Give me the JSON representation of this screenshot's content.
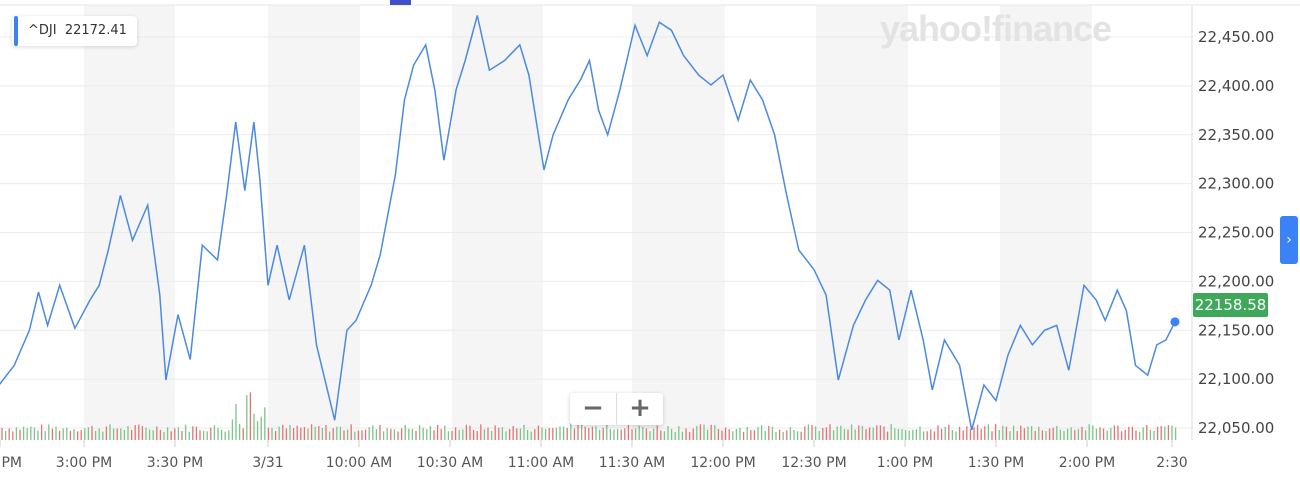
{
  "tooltip": {
    "symbol": "^DJI",
    "value": "22172.41"
  },
  "watermark": "yahoo!finance",
  "current_price": "22158.58",
  "zoom": {
    "out": "−",
    "in": "+"
  },
  "next_icon": "chevron-right-icon",
  "colors": {
    "line": "#4a8ae0",
    "up": "#7cc48a",
    "down": "#e57373",
    "price_badge": "#3fa85a",
    "accent": "#3b82f6"
  },
  "chart_data": {
    "type": "line",
    "title": "",
    "xlabel": "",
    "ylabel": "",
    "ylim": [
      22040,
      22470
    ],
    "grid": true,
    "y_ticks": [
      "22,450.00",
      "22,400.00",
      "22,350.00",
      "22,300.00",
      "22,250.00",
      "22,200.00",
      "22,150.00",
      "22,100.00",
      "22,050.00"
    ],
    "y_tick_values": [
      22450,
      22400,
      22350,
      22300,
      22250,
      22200,
      22150,
      22100,
      22050
    ],
    "x_ticks": [
      "PM",
      "3:00 PM",
      "3:30 PM",
      "3/31",
      "10:00 AM",
      "10:30 AM",
      "11:00 AM",
      "11:30 AM",
      "12:00 PM",
      "12:30 PM",
      "1:00 PM",
      "1:30 PM",
      "2:00 PM",
      "2:30"
    ],
    "x_tick_times": [
      "3/30 14:30",
      "3/30 15:00",
      "3/30 15:30",
      "3/31 09:30",
      "3/31 10:00",
      "3/31 10:30",
      "3/31 11:00",
      "3/31 11:30",
      "3/31 12:00",
      "3/31 12:30",
      "3/31 13:00",
      "3/31 13:30",
      "3/31 14:00",
      "3/31 14:30"
    ],
    "series": [
      {
        "points": [
          [
            "3/30 14:32",
            22094
          ],
          [
            "3/30 14:37",
            22114
          ],
          [
            "3/30 14:42",
            22150
          ],
          [
            "3/30 14:45",
            22189
          ],
          [
            "3/30 14:48",
            22155
          ],
          [
            "3/30 14:52",
            22196
          ],
          [
            "3/30 14:57",
            22152
          ],
          [
            "3/30 15:02",
            22181
          ],
          [
            "3/30 15:05",
            22196
          ],
          [
            "3/30 15:08",
            22232
          ],
          [
            "3/30 15:12",
            22288
          ],
          [
            "3/30 15:16",
            22242
          ],
          [
            "3/30 15:21",
            22278
          ],
          [
            "3/30 15:25",
            22186
          ],
          [
            "3/30 15:27",
            22099
          ],
          [
            "3/30 15:31",
            22166
          ],
          [
            "3/30 15:35",
            22120
          ],
          [
            "3/30 15:39",
            22237
          ],
          [
            "3/30 15:44",
            22222
          ],
          [
            "3/30 15:47",
            22288
          ],
          [
            "3/30 15:50",
            22363
          ],
          [
            "3/30 15:53",
            22293
          ],
          [
            "3/30 15:56",
            22363
          ],
          [
            "3/30 15:58",
            22304
          ],
          [
            "3/31 09:30",
            22196
          ],
          [
            "3/31 09:33",
            22237
          ],
          [
            "3/31 09:37",
            22181
          ],
          [
            "3/31 09:42",
            22237
          ],
          [
            "3/31 09:46",
            22135
          ],
          [
            "3/31 09:52",
            22058
          ],
          [
            "3/31 09:56",
            22150
          ],
          [
            "3/31 09:59",
            22160
          ],
          [
            "3/31 10:04",
            22196
          ],
          [
            "3/31 10:07",
            22227
          ],
          [
            "3/31 10:12",
            22309
          ],
          [
            "3/31 10:15",
            22386
          ],
          [
            "3/31 10:18",
            22421
          ],
          [
            "3/31 10:22",
            22442
          ],
          [
            "3/31 10:25",
            22396
          ],
          [
            "3/31 10:28",
            22324
          ],
          [
            "3/31 10:32",
            22396
          ],
          [
            "3/31 10:35",
            22426
          ],
          [
            "3/31 10:39",
            22472
          ],
          [
            "3/31 10:43",
            22416
          ],
          [
            "3/31 10:48",
            22426
          ],
          [
            "3/31 10:53",
            22442
          ],
          [
            "3/31 10:56",
            22411
          ],
          [
            "3/31 11:01",
            22314
          ],
          [
            "3/31 11:04",
            22350
          ],
          [
            "3/31 11:09",
            22386
          ],
          [
            "3/31 11:13",
            22406
          ],
          [
            "3/31 11:16",
            22426
          ],
          [
            "3/31 11:19",
            22375
          ],
          [
            "3/31 11:22",
            22350
          ],
          [
            "3/31 11:26",
            22396
          ],
          [
            "3/31 11:31",
            22462
          ],
          [
            "3/31 11:35",
            22431
          ],
          [
            "3/31 11:39",
            22465
          ],
          [
            "3/31 11:43",
            22457
          ],
          [
            "3/31 11:47",
            22431
          ],
          [
            "3/31 11:52",
            22411
          ],
          [
            "3/31 11:56",
            22401
          ],
          [
            "3/31 12:00",
            22411
          ],
          [
            "3/31 12:05",
            22365
          ],
          [
            "3/31 12:09",
            22406
          ],
          [
            "3/31 12:13",
            22386
          ],
          [
            "3/31 12:17",
            22350
          ],
          [
            "3/31 12:21",
            22288
          ],
          [
            "3/31 12:25",
            22232
          ],
          [
            "3/31 12:30",
            22212
          ],
          [
            "3/31 12:34",
            22186
          ],
          [
            "3/31 12:38",
            22099
          ],
          [
            "3/31 12:43",
            22155
          ],
          [
            "3/31 12:47",
            22181
          ],
          [
            "3/31 12:51",
            22201
          ],
          [
            "3/31 12:55",
            22191
          ],
          [
            "3/31 12:58",
            22140
          ],
          [
            "3/31 13:02",
            22191
          ],
          [
            "3/31 13:06",
            22140
          ],
          [
            "3/31 13:09",
            22089
          ],
          [
            "3/31 13:13",
            22140
          ],
          [
            "3/31 13:18",
            22114
          ],
          [
            "3/31 13:22",
            22048
          ],
          [
            "3/31 13:26",
            22094
          ],
          [
            "3/31 13:30",
            22078
          ],
          [
            "3/31 13:34",
            22125
          ],
          [
            "3/31 13:38",
            22155
          ],
          [
            "3/31 13:42",
            22135
          ],
          [
            "3/31 13:46",
            22150
          ],
          [
            "3/31 13:50",
            22155
          ],
          [
            "3/31 13:54",
            22109
          ],
          [
            "3/31 13:59",
            22196
          ],
          [
            "3/31 14:03",
            22181
          ],
          [
            "3/31 14:06",
            22160
          ],
          [
            "3/31 14:10",
            22191
          ],
          [
            "3/31 14:13",
            22170
          ],
          [
            "3/31 14:16",
            22114
          ],
          [
            "3/31 14:20",
            22104
          ],
          [
            "3/31 14:23",
            22135
          ],
          [
            "3/31 14:26",
            22140
          ],
          [
            "3/31 14:29",
            22158.58
          ]
        ]
      }
    ]
  }
}
